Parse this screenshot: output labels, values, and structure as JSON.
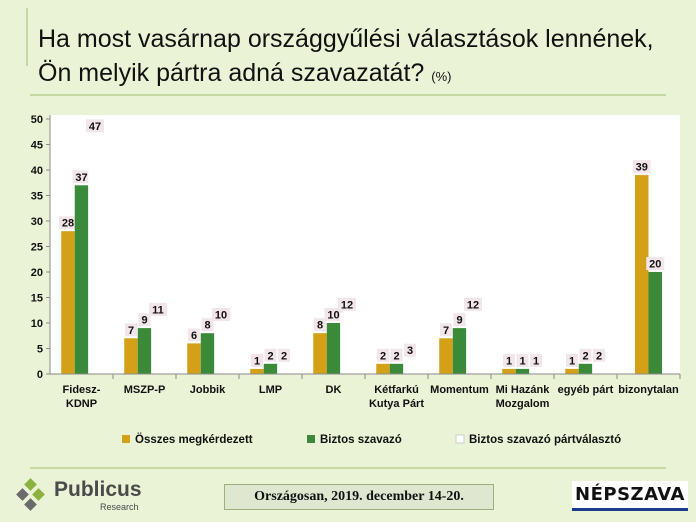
{
  "title": {
    "text": "Ha most vasárnap országgyűlési választások lennének, Ön melyik pártra adná szavazatát?",
    "unit": "(%)"
  },
  "footer": {
    "date": "Országosan, 2019. december 14-20.",
    "logo_name": "Publicus",
    "logo_sub": "Research",
    "partner": "NÉPSZAVA"
  },
  "colors": {
    "series1": "#d4a017",
    "series2": "#3a8a3a",
    "series3": "#ffffff",
    "label_bg": "#f2e6ea",
    "axis": "#8a8a8a"
  },
  "chart_data": {
    "type": "bar",
    "ylim": [
      0,
      50
    ],
    "yticks": [
      "0",
      "5",
      "10",
      "15",
      "20",
      "25",
      "30",
      "35",
      "40",
      "45",
      "50"
    ],
    "categories": [
      [
        "Fidesz-",
        "KDNP"
      ],
      [
        "MSZP-P"
      ],
      [
        "Jobbik"
      ],
      [
        "LMP"
      ],
      [
        "DK"
      ],
      [
        "Kétfarkú",
        "Kutya Párt"
      ],
      [
        "Momentum"
      ],
      [
        "Mi Hazánk",
        "Mozgalom"
      ],
      [
        "egyéb párt"
      ],
      [
        "bizonytalan"
      ]
    ],
    "series": [
      {
        "name": "Összes megkérdezett",
        "values": [
          28,
          7,
          6,
          1,
          8,
          2,
          7,
          1,
          1,
          39
        ]
      },
      {
        "name": "Biztos szavazó",
        "values": [
          37,
          9,
          8,
          2,
          10,
          2,
          9,
          1,
          2,
          20
        ]
      },
      {
        "name": "Biztos szavazó pártválasztó",
        "values": [
          47,
          11,
          10,
          2,
          12,
          3,
          12,
          1,
          2,
          null
        ]
      }
    ]
  }
}
